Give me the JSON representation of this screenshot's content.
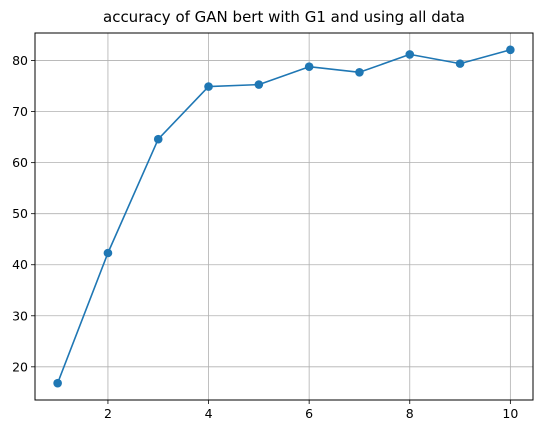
{
  "chart_data": {
    "type": "line",
    "title": "accuracy of GAN bert with G1 and using all data",
    "xlabel": "",
    "ylabel": "",
    "x": [
      1,
      2,
      3,
      4,
      5,
      6,
      7,
      8,
      9,
      10
    ],
    "series": [
      {
        "values": [
          16.8,
          42.3,
          64.6,
          74.9,
          75.3,
          78.8,
          77.7,
          81.2,
          79.4,
          82.1
        ]
      }
    ],
    "xlim": [
      0.55,
      10.45
    ],
    "ylim": [
      13.5,
      85.4
    ],
    "xticks": [
      2,
      4,
      6,
      8,
      10
    ],
    "yticks": [
      20,
      30,
      40,
      50,
      60,
      70,
      80
    ],
    "grid": true,
    "line_color": "#1f77b4",
    "marker": "circle"
  }
}
